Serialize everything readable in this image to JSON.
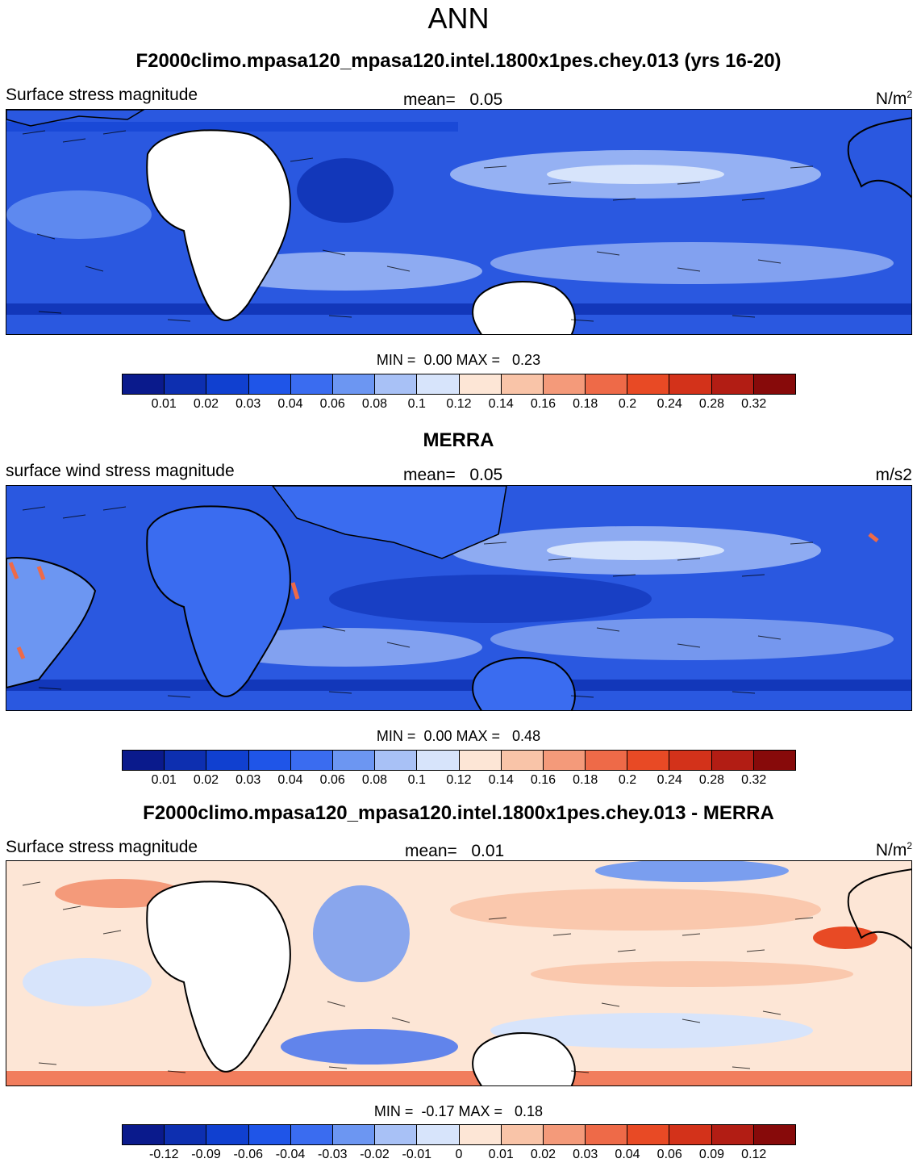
{
  "title": "ANN",
  "panels": [
    {
      "title": "F2000climo.mpasa120_mpasa120.intel.1800x1pes.chey.013 (yrs 16-20)",
      "left_label": "Surface stress magnitude",
      "mean_label": "mean=",
      "mean_value": "0.05",
      "units": "N/m",
      "units_sup": "2",
      "min_label": "MIN =",
      "min_value": "0.00",
      "max_label": "MAX =",
      "max_value": "0.23",
      "colorbar_ticks": [
        "0.01",
        "0.02",
        "0.03",
        "0.04",
        "0.06",
        "0.08",
        "0.1",
        "0.12",
        "0.14",
        "0.16",
        "0.18",
        "0.2",
        "0.24",
        "0.28",
        "0.32"
      ]
    },
    {
      "title": "MERRA",
      "left_label": "surface wind stress magnitude",
      "mean_label": "mean=",
      "mean_value": "0.05",
      "units": "m/s2",
      "units_sup": "",
      "min_label": "MIN =",
      "min_value": "0.00",
      "max_label": "MAX =",
      "max_value": "0.48",
      "colorbar_ticks": [
        "0.01",
        "0.02",
        "0.03",
        "0.04",
        "0.06",
        "0.08",
        "0.1",
        "0.12",
        "0.14",
        "0.16",
        "0.18",
        "0.2",
        "0.24",
        "0.28",
        "0.32"
      ]
    },
    {
      "title": "F2000climo.mpasa120_mpasa120.intel.1800x1pes.chey.013 - MERRA",
      "left_label": "Surface stress magnitude",
      "mean_label": "mean=",
      "mean_value": "0.01",
      "units": "N/m",
      "units_sup": "2",
      "min_label": "MIN =",
      "min_value": "-0.17",
      "max_label": "MAX =",
      "max_value": "0.18",
      "colorbar_ticks": [
        "-0.12",
        "-0.09",
        "-0.06",
        "-0.04",
        "-0.03",
        "-0.02",
        "-0.01",
        "0",
        "0.01",
        "0.02",
        "0.03",
        "0.04",
        "0.06",
        "0.09",
        "0.12"
      ]
    }
  ],
  "colors": {
    "seq": [
      "#0a1a8c",
      "#0d2fb0",
      "#1040d0",
      "#1f55e8",
      "#3a6cf0",
      "#6c96f2",
      "#a8c1f6",
      "#d7e4fb",
      "#fde6d6",
      "#f9c4a8",
      "#f49a7a",
      "#ee6a48",
      "#e84a25",
      "#d3321a",
      "#b21d14",
      "#870a0a"
    ],
    "div": [
      "#0a1a8c",
      "#0d2fb0",
      "#1040d0",
      "#1f55e8",
      "#3a6cf0",
      "#6c96f2",
      "#a8c1f6",
      "#d7e4fb",
      "#fde6d6",
      "#f9c4a8",
      "#f49a7a",
      "#ee6a48",
      "#e84a25",
      "#d3321a",
      "#b21d14",
      "#870a0a"
    ]
  }
}
